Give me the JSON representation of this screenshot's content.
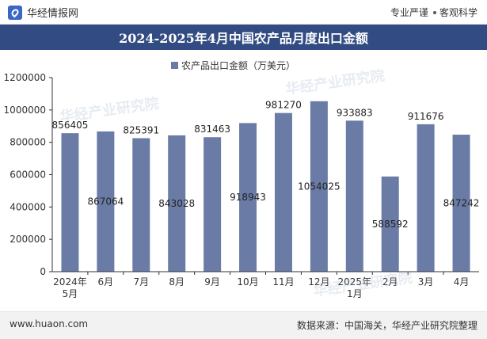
{
  "header": {
    "brand_name": "华经情报网",
    "tagline_left": "专业严谨",
    "tagline_right": "客观科学"
  },
  "footer": {
    "url": "www.huaon.com",
    "source": "数据来源：中国海关，华经产业研究院整理"
  },
  "colors": {
    "bar": "#6a7ba6",
    "title_bg": "#324c83",
    "axis": "#333333"
  },
  "chart_data": {
    "type": "bar",
    "title": "2024-2025年4月中国农产品月度出口金额",
    "legend": "农产品出口金额（万美元）",
    "legend_position": "top-center",
    "categories": [
      "2024年5月",
      "6月",
      "7月",
      "8月",
      "9月",
      "10月",
      "11月",
      "12月",
      "2025年1月",
      "2月",
      "3月",
      "4月"
    ],
    "series": [
      {
        "name": "农产品出口金额（万美元）",
        "values": [
          856405,
          867064,
          825391,
          843028,
          831463,
          918943,
          981270,
          1054025,
          933883,
          588592,
          911676,
          847242
        ]
      }
    ],
    "ylim": [
      0,
      1200000
    ],
    "yticks": [
      0,
      200000,
      400000,
      600000,
      800000,
      1000000,
      1200000
    ],
    "grid": false
  }
}
